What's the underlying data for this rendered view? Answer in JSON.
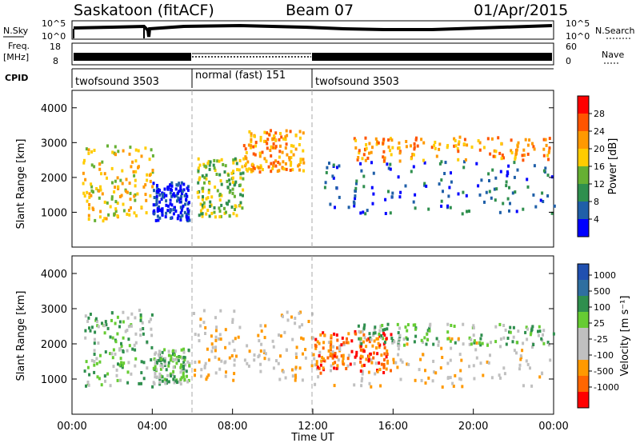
{
  "header": {
    "station": "Saskatoon (fitACF)",
    "beam": "Beam 07",
    "date": "01/Apr/2015"
  },
  "panels": {
    "nsky": {
      "left_label": "N.Sky",
      "left_ticks": [
        "10^5",
        "10^0"
      ],
      "right_ticks": [
        "10^5",
        "10^0"
      ],
      "right_label": "N.Search"
    },
    "freq": {
      "left_label_top": "Freq.",
      "left_label_bottom": "[MHz]",
      "left_ticks": [
        "18",
        "8"
      ],
      "right_ticks": [
        "60",
        "0"
      ],
      "right_label": "Nave"
    },
    "cpid": {
      "label": "CPID",
      "segments": [
        {
          "label": "twofsound 3503",
          "start": "00:00",
          "end": "06:00"
        },
        {
          "label": "normal (fast) 151",
          "start": "06:00",
          "end": "12:00"
        },
        {
          "label": "twofsound 3503",
          "start": "12:00",
          "end": "24:00"
        }
      ]
    }
  },
  "colors": {
    "power_scale": [
      "#ff0000",
      "#ff5500",
      "#ff9900",
      "#ffcc00",
      "#66b033",
      "#2f8f4e",
      "#1f5fa8",
      "#0000ff"
    ],
    "velocity_scale": [
      "#2050b0",
      "#2f6fa0",
      "#2f8f4e",
      "#66cc33",
      "#c0c0c0",
      "#c0c0c0",
      "#ff9900",
      "#ff6600",
      "#ff0000"
    ],
    "ground_scatter": "#c0c0c0"
  },
  "chart_data": [
    {
      "type": "heatmap",
      "panel": "power",
      "ylabel": "Slant Range [km]",
      "ylim": [
        0,
        4500
      ],
      "yticks": [
        "1000",
        "2000",
        "3000",
        "4000"
      ],
      "colorbar_label": "Power [dB]",
      "colorbar_ticks": [
        "28",
        "24",
        "20",
        "16",
        "12",
        "8",
        "4"
      ],
      "bands": [
        {
          "x": [
            0.5,
            4.0
          ],
          "y": [
            800,
            3000
          ],
          "level": 3
        },
        {
          "x": [
            4.0,
            5.8
          ],
          "y": [
            800,
            1900
          ],
          "level": 7
        },
        {
          "x": [
            6.2,
            8.5
          ],
          "y": [
            900,
            2600
          ],
          "level": 4
        },
        {
          "x": [
            8.5,
            11.5
          ],
          "y": [
            2200,
            3400
          ],
          "level": 2
        },
        {
          "x": [
            12.5,
            24.0
          ],
          "y": [
            1000,
            2500
          ],
          "level": 6
        },
        {
          "x": [
            14.0,
            24.0
          ],
          "y": [
            2500,
            3200
          ],
          "level": 2
        }
      ]
    },
    {
      "type": "heatmap",
      "panel": "velocity",
      "ylabel": "Slant Range [km]",
      "xlabel": "Time UT",
      "ylim": [
        0,
        4500
      ],
      "yticks": [
        "1000",
        "2000",
        "3000",
        "4000"
      ],
      "xticks": [
        "00:00",
        "04:00",
        "08:00",
        "12:00",
        "16:00",
        "20:00",
        "00:00"
      ],
      "colorbar_label": "Velocity [m s⁻¹]",
      "colorbar_ticks": [
        "1000",
        "500",
        "100",
        "25",
        "-25",
        "-100",
        "-500",
        "-1000"
      ],
      "bands": [
        {
          "x": [
            0.5,
            4.0
          ],
          "y": [
            800,
            3000
          ],
          "level": 3
        },
        {
          "x": [
            4.0,
            5.8
          ],
          "y": [
            900,
            1900
          ],
          "level": 3
        },
        {
          "x": [
            6.0,
            12.0
          ],
          "y": [
            1000,
            3000
          ],
          "level": 5
        },
        {
          "x": [
            12.0,
            24.0
          ],
          "y": [
            800,
            2200
          ],
          "level": 5
        },
        {
          "x": [
            12.0,
            16.0
          ],
          "y": [
            1200,
            2400
          ],
          "level": 7
        },
        {
          "x": [
            14.0,
            24.0
          ],
          "y": [
            2000,
            2600
          ],
          "level": 3
        }
      ]
    }
  ]
}
